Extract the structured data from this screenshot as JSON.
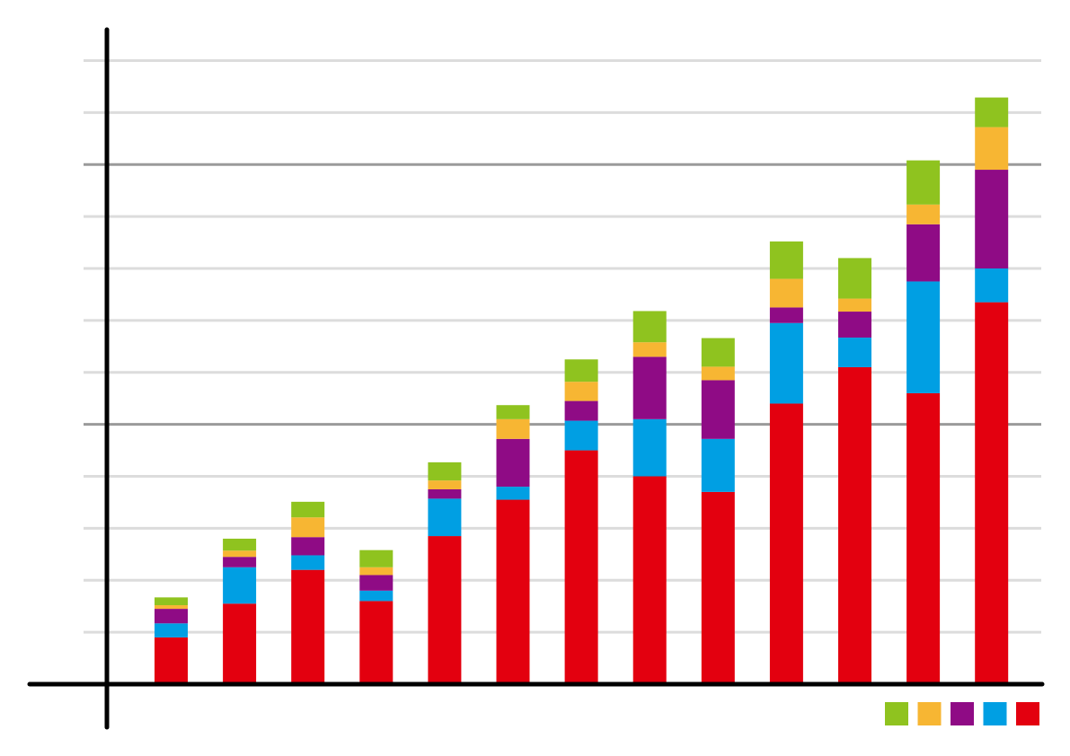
{
  "chart_data": {
    "type": "bar",
    "stacked": true,
    "title": "",
    "xlabel": "",
    "ylabel": "",
    "categories": [
      "",
      "",
      "",
      "",
      "",
      "",
      "",
      "",
      "",
      "",
      "",
      "",
      ""
    ],
    "ylim": [
      0,
      12
    ],
    "grid": true,
    "major_grid_every": 5,
    "axis_tick_labels_visible": false,
    "legend_position": "bottom-right",
    "series": [
      {
        "color": "#e3000f",
        "values": [
          0.9,
          1.55,
          2.2,
          1.6,
          2.85,
          3.55,
          4.5,
          4.0,
          3.7,
          5.4,
          6.1,
          5.6,
          7.35
        ]
      },
      {
        "color": "#009fe3",
        "values": [
          0.27,
          0.7,
          0.28,
          0.2,
          0.72,
          0.25,
          0.57,
          1.1,
          1.02,
          1.55,
          0.57,
          2.15,
          0.65
        ]
      },
      {
        "color": "#8f0b85",
        "values": [
          0.28,
          0.2,
          0.35,
          0.3,
          0.18,
          0.92,
          0.38,
          1.2,
          1.13,
          0.3,
          0.5,
          1.1,
          1.9
        ]
      },
      {
        "color": "#f7b633",
        "values": [
          0.07,
          0.12,
          0.38,
          0.15,
          0.17,
          0.38,
          0.37,
          0.28,
          0.26,
          0.55,
          0.25,
          0.38,
          0.82
        ]
      },
      {
        "color": "#8fc31f",
        "values": [
          0.15,
          0.23,
          0.3,
          0.33,
          0.35,
          0.27,
          0.43,
          0.6,
          0.55,
          0.72,
          0.78,
          0.85,
          0.57
        ]
      }
    ]
  }
}
